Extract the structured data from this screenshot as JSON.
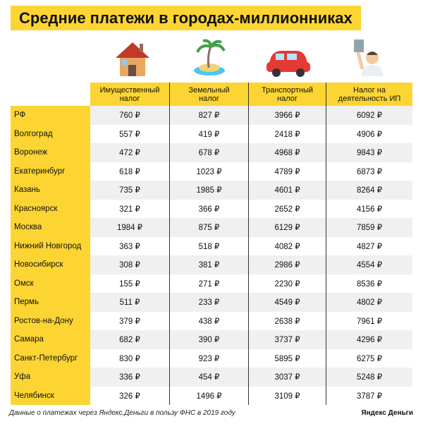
{
  "header": {
    "title": "Средние платежи в городах-миллионниках"
  },
  "table": {
    "columns": [
      "Имущественный налог",
      "Земельный налог",
      "Транспортный налог",
      "Налог на деятельность ИП"
    ],
    "rows": [
      [
        "РФ",
        "760 ₽",
        "827 ₽",
        "3966 ₽",
        "6092 ₽"
      ],
      [
        "Волгоград",
        "557 ₽",
        "419 ₽",
        "2418 ₽",
        "4906 ₽"
      ],
      [
        "Воронеж",
        "472 ₽",
        "678 ₽",
        "4968 ₽",
        "9843 ₽"
      ],
      [
        "Екатеринбург",
        "618 ₽",
        "1023 ₽",
        "4789 ₽",
        "6873 ₽"
      ],
      [
        "Казань",
        "735 ₽",
        "1985 ₽",
        "4601 ₽",
        "8264 ₽"
      ],
      [
        "Красноярск",
        "321 ₽",
        "366 ₽",
        "2652 ₽",
        "4156 ₽"
      ],
      [
        "Москва",
        "1984 ₽",
        "875 ₽",
        "6129 ₽",
        "7859 ₽"
      ],
      [
        "Нижний Новгород",
        "363 ₽",
        "518 ₽",
        "4082 ₽",
        "4827 ₽"
      ],
      [
        "Новосибирск",
        "308 ₽",
        "381 ₽",
        "2986 ₽",
        "4554 ₽"
      ],
      [
        "Омск",
        "155 ₽",
        "271 ₽",
        "2230 ₽",
        "8536 ₽"
      ],
      [
        "Пермь",
        "511 ₽",
        "233 ₽",
        "4549 ₽",
        "4802 ₽"
      ],
      [
        "Ростов-на-Дону",
        "379 ₽",
        "438 ₽",
        "2638 ₽",
        "7961 ₽"
      ],
      [
        "Самара",
        "682 ₽",
        "390 ₽",
        "3737 ₽",
        "4296 ₽"
      ],
      [
        "Санкт-Петербург",
        "830 ₽",
        "923 ₽",
        "5895 ₽",
        "6275 ₽"
      ],
      [
        "Уфа",
        "336 ₽",
        "454 ₽",
        "3037 ₽",
        "5248 ₽"
      ],
      [
        "Челябинск",
        "326 ₽",
        "1496 ₽",
        "3109 ₽",
        "3787 ₽"
      ]
    ]
  },
  "footer": {
    "note": "Данные о платежах через Яндекс.Деньги в пользу ФНС в 2019 году",
    "brand": "Яндекс Деньги"
  }
}
